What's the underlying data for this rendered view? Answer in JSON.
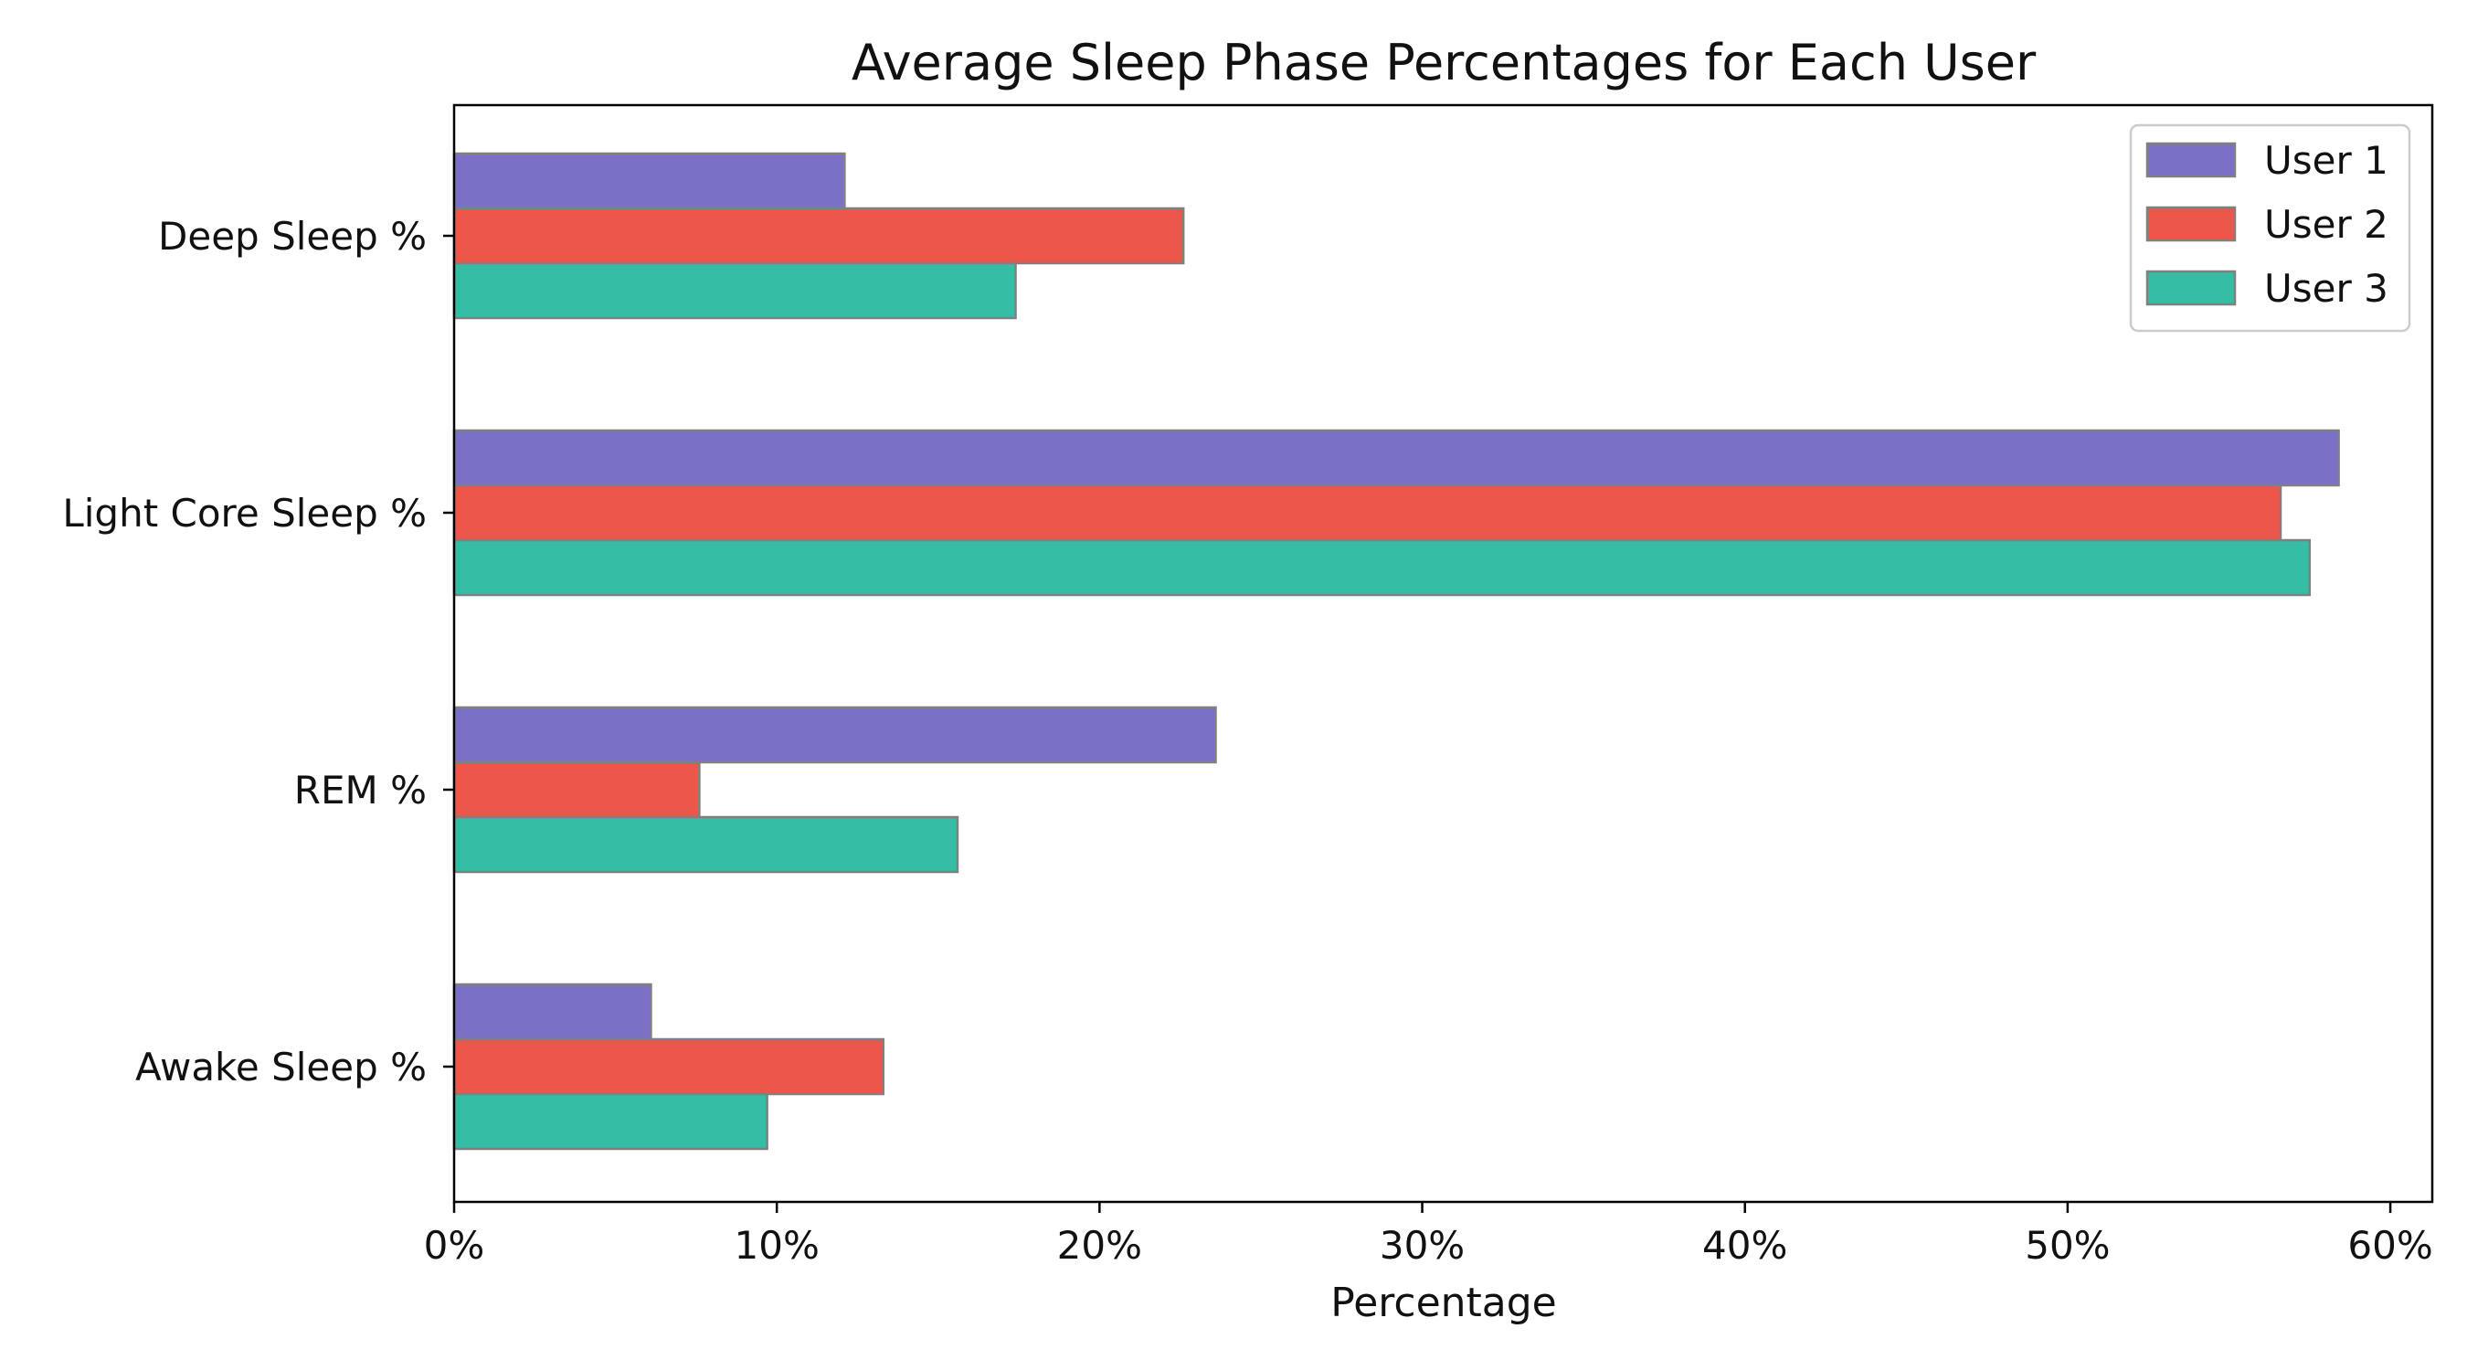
{
  "chart_data": {
    "type": "bar",
    "orientation": "horizontal",
    "title": "Average Sleep Phase Percentages for Each User",
    "xlabel": "Percentage",
    "ylabel": "",
    "categories": [
      "Deep Sleep %",
      "Light Core Sleep %",
      "REM %",
      "Awake Sleep %"
    ],
    "series": [
      {
        "name": "User 1",
        "color": "#7a70c6",
        "values": [
          12.1,
          58.4,
          23.6,
          6.1
        ]
      },
      {
        "name": "User 2",
        "color": "#ec564b",
        "values": [
          22.6,
          56.6,
          7.6,
          13.3
        ]
      },
      {
        "name": "User 3",
        "color": "#35bda6",
        "values": [
          17.4,
          57.5,
          15.6,
          9.7
        ]
      }
    ],
    "xlim": [
      0,
      61.3
    ],
    "xticks": [
      0,
      10,
      20,
      30,
      40,
      50,
      60
    ],
    "xtick_labels": [
      "0%",
      "10%",
      "20%",
      "30%",
      "40%",
      "50%",
      "60%"
    ],
    "grid": false,
    "legend_position": "top-right",
    "bar_edge_color": "#808080"
  }
}
